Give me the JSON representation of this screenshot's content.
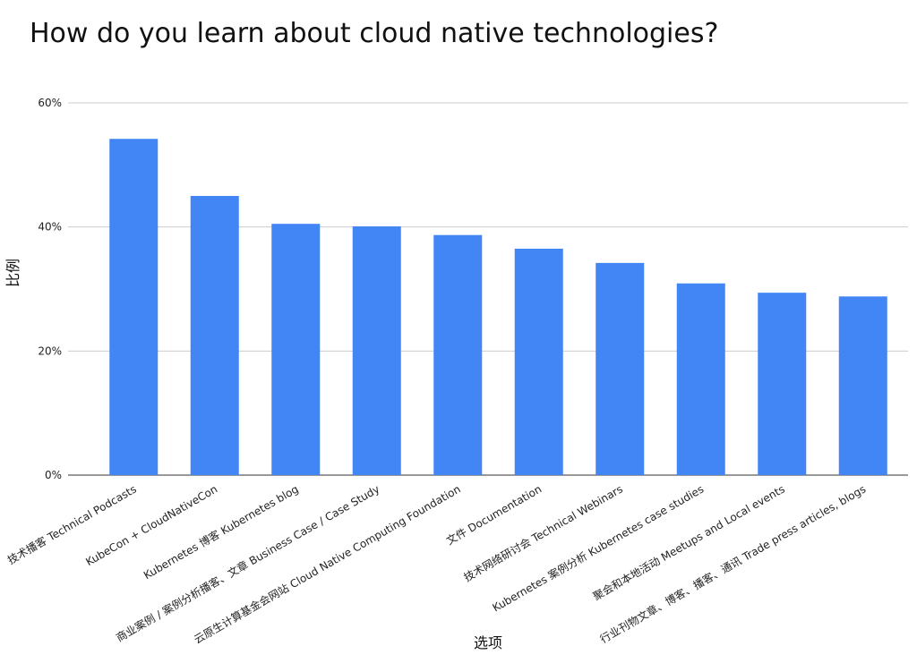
{
  "chart_data": {
    "type": "bar",
    "title": "How do you learn about cloud native technologies?",
    "x_label": "选项",
    "y_label": "比例",
    "categories": [
      "技术播客 Technical Podcasts",
      "KubeCon + CloudNativeCon",
      "Kubernetes 博客 Kubernetes blog",
      "商业案例 / 案例分析播客、文章 Business Case / Case Study",
      "云原生计算基金会网站 Cloud Native Computing Foundation",
      "文件 Documentation",
      "技术网络研讨会 Technical Webinars",
      "Kubernetes 案例分析 Kubernetes case studies",
      "聚会和本地活动 Meetups and Local events",
      "行业刊物文章、博客、播客、通讯 Trade press articles, blogs"
    ],
    "values": [
      54.2,
      45.0,
      40.5,
      40.1,
      38.7,
      36.5,
      34.2,
      30.9,
      29.4,
      28.8
    ],
    "color": "#4285f4",
    "ylim": [
      0,
      60
    ],
    "yticks": [
      {
        "value": 0,
        "label": "0%"
      },
      {
        "value": 20,
        "label": "20%"
      },
      {
        "value": 40,
        "label": "40%"
      },
      {
        "value": 60,
        "label": "60%"
      }
    ],
    "grid": true
  }
}
